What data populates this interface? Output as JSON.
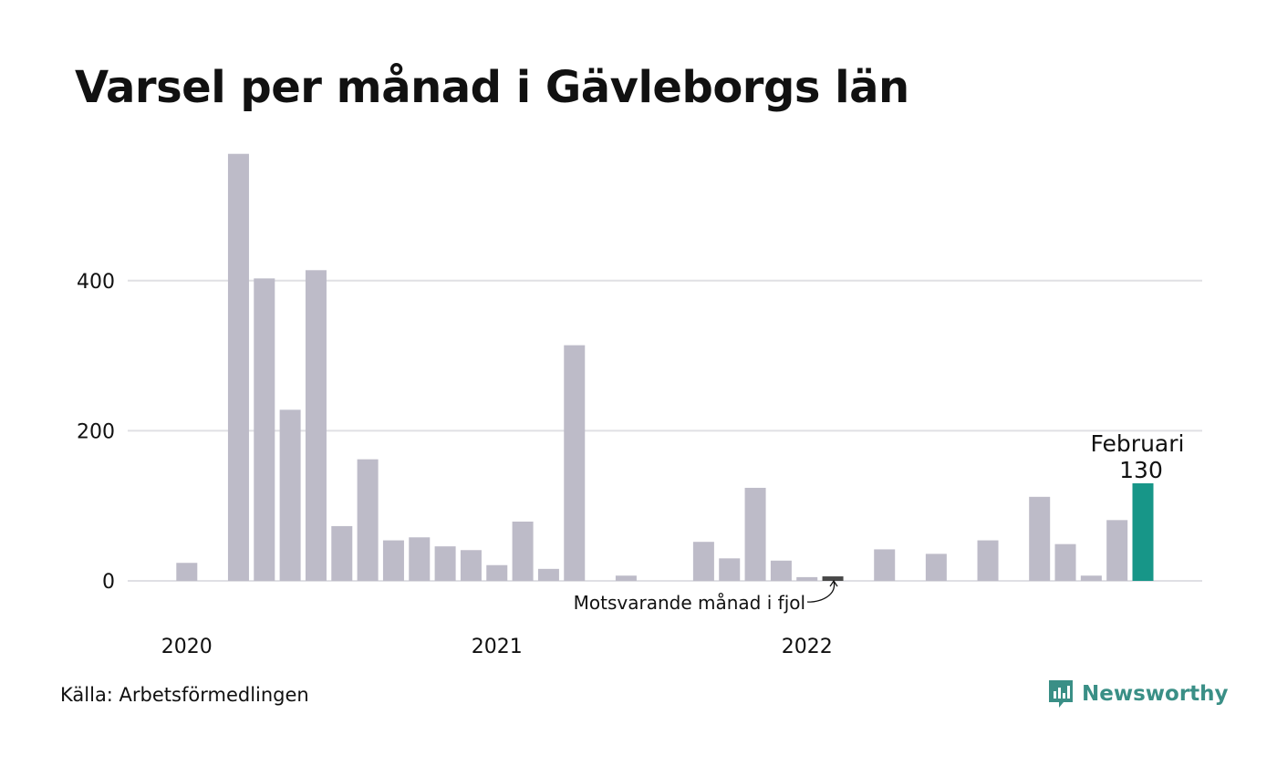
{
  "title": "Varsel per månad i Gävleborgs län",
  "source": "Källa: Arbetsförmedlingen",
  "brand": {
    "name": "Newsworthy",
    "icon": "newsworthy-logo-icon",
    "color": "#3a8f86"
  },
  "colors": {
    "bar": "#bdbbc8",
    "last_year": "#484848",
    "current": "#179688",
    "grid": "#e0e0e4"
  },
  "chart_data": {
    "type": "bar",
    "ylim": [
      0,
      570
    ],
    "yticks": [
      0,
      200,
      400
    ],
    "ytick_labels": [
      "0",
      "200",
      "400"
    ],
    "xtick_labels": [
      {
        "label": "2020",
        "month": "2020-01"
      },
      {
        "label": "2021",
        "month": "2021-01"
      },
      {
        "label": "2022",
        "month": "2022-01"
      }
    ],
    "grid": true,
    "months": [
      "2020-01",
      "2020-02",
      "2020-03",
      "2020-04",
      "2020-05",
      "2020-06",
      "2020-07",
      "2020-08",
      "2020-09",
      "2020-10",
      "2020-11",
      "2020-12",
      "2021-01",
      "2021-02",
      "2021-03",
      "2021-04",
      "2021-05",
      "2021-06",
      "2021-07",
      "2021-08",
      "2021-09",
      "2021-10",
      "2021-11",
      "2021-12",
      "2022-01",
      "2022-02",
      "2022-03",
      "2022-04",
      "2022-05",
      "2022-06",
      "2022-07",
      "2022-08",
      "2022-09",
      "2022-10",
      "2022-11",
      "2022-12",
      "2023-01",
      "2023-02"
    ],
    "values": [
      24,
      0,
      569,
      403,
      228,
      414,
      73,
      162,
      54,
      58,
      46,
      41,
      21,
      79,
      16,
      314,
      0,
      7,
      0,
      0,
      52,
      30,
      124,
      27,
      5,
      6,
      0,
      42,
      0,
      36,
      0,
      54,
      0,
      112,
      49,
      7,
      81,
      130
    ],
    "highlight_last_year": "2022-02",
    "highlight_current": "2023-02",
    "annotation_last_year": "Motsvarande månad i fjol",
    "annotation_current": {
      "label": "Februari",
      "value": "130"
    }
  }
}
